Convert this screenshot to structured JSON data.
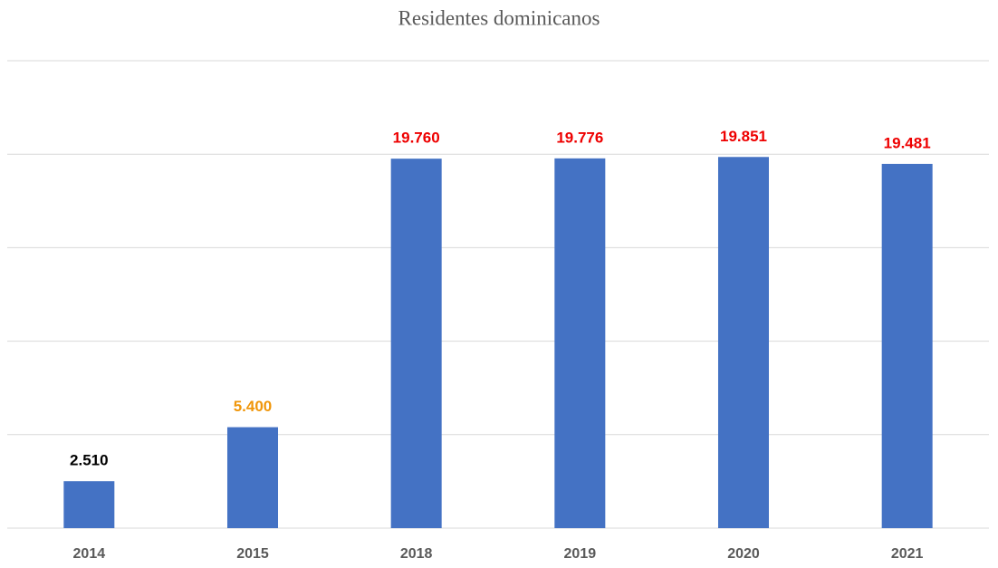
{
  "chart_data": {
    "type": "bar",
    "title": "Residentes dominicanos",
    "categories": [
      "2014",
      "2015",
      "2018",
      "2019",
      "2020",
      "2021"
    ],
    "values": [
      2510,
      5400,
      19760,
      19776,
      19851,
      19481
    ],
    "value_labels": [
      "2.510",
      "5.400",
      "19.760",
      "19.776",
      "19.851",
      "19.481"
    ],
    "value_label_colors": [
      "#000000",
      "#f0960a",
      "#ee0000",
      "#ee0000",
      "#ee0000",
      "#ee0000"
    ],
    "color": "#4472c4",
    "ylim": [
      0,
      25000
    ],
    "yticks": [
      0,
      5000,
      10000,
      15000,
      20000,
      25000
    ],
    "grid": true
  }
}
